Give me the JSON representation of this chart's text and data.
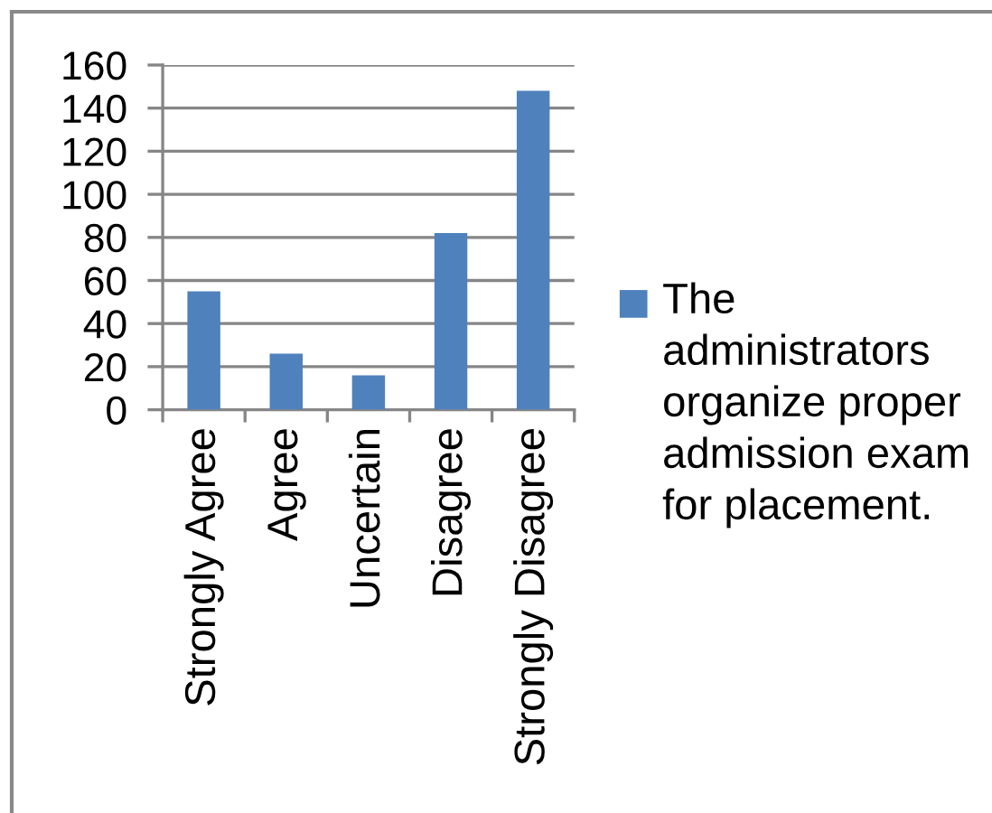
{
  "chart_data": {
    "type": "bar",
    "categories": [
      "Strongly Agree",
      "Agree",
      "Uncertain",
      "Disagree",
      "Strongly Disagree"
    ],
    "series": [
      {
        "name": "The\nadministrators\norganize proper\nadmission exam\nfor placement.",
        "color": "#4f81bd",
        "values": [
          55,
          26,
          16,
          82,
          148
        ]
      }
    ],
    "ylim": [
      0,
      160
    ],
    "yticks": [
      0,
      20,
      40,
      60,
      80,
      100,
      120,
      140,
      160
    ],
    "grid": "y",
    "legend": "right"
  }
}
